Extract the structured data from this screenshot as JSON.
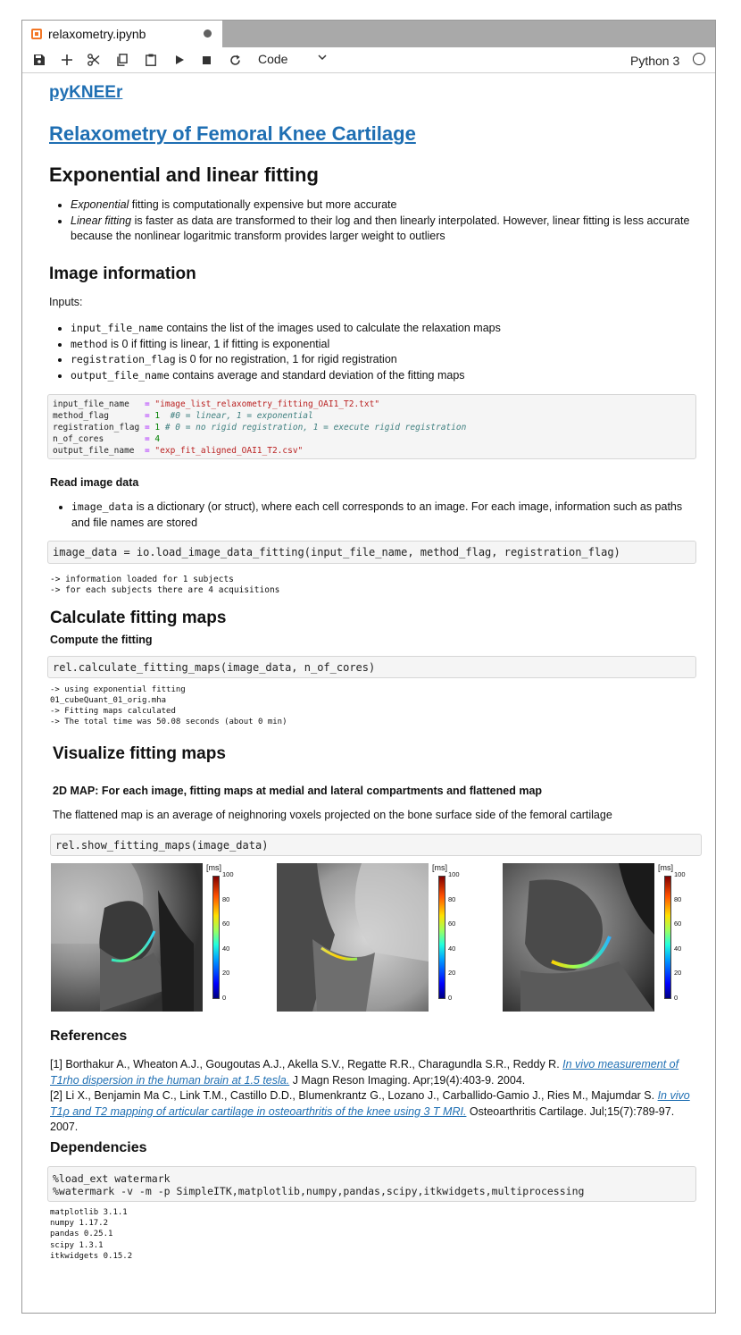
{
  "tab": {
    "title": "relaxometry.ipynb"
  },
  "toolbar": {
    "cell_type": "Code",
    "kernel": "Python 3"
  },
  "notebook": {
    "logo_link": "pyKNEEr",
    "main_title": "Relaxometry of Femoral Knee Cartilage",
    "section1": {
      "heading": "Exponential and linear fitting",
      "bullet1_em": "Exponential",
      "bullet1_rest": " fitting is computationally expensive but more accurate",
      "bullet2_em": "Linear fitting",
      "bullet2_rest": " is faster as data are transformed to their log and then linearly interpolated. However, linear fitting is less accurate because the nonlinear logaritmic transform provides larger weight to outliers"
    },
    "section2": {
      "heading": "Image information",
      "inputs_label": "Inputs:",
      "items": [
        {
          "code": "input_file_name",
          "text": " contains the list of the images used to calculate the relaxation maps"
        },
        {
          "code": "method",
          "text": " is 0 if fitting is linear, 1 if fitting is exponential"
        },
        {
          "code": "registration_flag",
          "text": " is 0 for no registration, 1 for rigid registration"
        },
        {
          "code": "output_file_name",
          "text": " contains average and standard deviation of the fitting maps"
        }
      ],
      "code_lines": {
        "l1_name": "input_file_name   ",
        "l1_eq": "= ",
        "l1_val": "\"image_list_relaxometry_fitting_OAI1_T2.txt\"",
        "l2_name": "method_flag       ",
        "l2_eq": "= ",
        "l2_val": "1",
        "l2_com": "  #0 = linear, 1 = exponential",
        "l3_name": "registration_flag ",
        "l3_eq": "= ",
        "l3_val": "1",
        "l3_com": " # 0 = no rigid registration, 1 = execute rigid registration",
        "l4_name": "n_of_cores        ",
        "l4_eq": "= ",
        "l4_val": "4",
        "l5_name": "output_file_name  ",
        "l5_eq": "= ",
        "l5_val": "\"exp_fit_aligned_OAI1_T2.csv\""
      }
    },
    "section3": {
      "heading": "Read image data",
      "bullet_code": "image_data",
      "bullet_text": " is a dictionary (or struct), where each cell corresponds to an image. For each image, information such as paths and file names are stored",
      "code": "image_data = io.load_image_data_fitting(input_file_name, method_flag, registration_flag)",
      "output": "-> information loaded for 1 subjects\n-> for each subjects there are 4 acquisitions"
    },
    "section4": {
      "heading": "Calculate fitting maps",
      "subheading": "Compute the fitting",
      "code": "rel.calculate_fitting_maps(image_data, n_of_cores)",
      "output": "-> using exponential fitting\n01_cubeQuant_01_orig.mha\n-> Fitting maps calculated\n-> The total time was 50.08 seconds (about 0 min)"
    },
    "section5": {
      "heading": "Visualize fitting maps",
      "subheading": "2D MAP: For each image, fitting maps at medial and lateral compartments and flattened map",
      "text": "The flattened map is an average of neighnoring voxels projected on the bone surface side of the femoral cartilage",
      "code": "rel.show_fitting_maps(image_data)",
      "colorbar_unit": "[ms]",
      "colorbar_ticks": [
        "100",
        "80",
        "60",
        "40",
        "20",
        "0"
      ]
    },
    "references": {
      "heading": "References",
      "ref1_pre": "[1] Borthakur A., Wheaton A.J., Gougoutas A.J., Akella S.V., Regatte R.R., Charagundla S.R., Reddy R. ",
      "ref1_link": "In vivo measurement of T1rho dispersion in the human brain at 1.5 tesla.",
      "ref1_post": " J Magn Reson Imaging. Apr;19(4):403-9. 2004.",
      "ref2_pre": "[2] Li X., Benjamin Ma C., Link T.M., Castillo D.D., Blumenkrantz G., Lozano J., Carballido-Gamio J., Ries M., Majumdar S. ",
      "ref2_link": "In vivo T1ρ and T2 mapping of articular cartilage in osteoarthritis of the knee using 3 T MRI.",
      "ref2_post": " Osteoarthritis Cartilage. Jul;15(7):789-97. 2007."
    },
    "dependencies": {
      "heading": "Dependencies",
      "code": "%load_ext watermark\n%watermark -v -m -p SimpleITK,matplotlib,numpy,pandas,scipy,itkwidgets,multiprocessing",
      "output": "matplotlib 3.1.1\nnumpy 1.17.2\npandas 0.25.1\nscipy 1.3.1\nitkwidgets 0.15.2"
    }
  }
}
